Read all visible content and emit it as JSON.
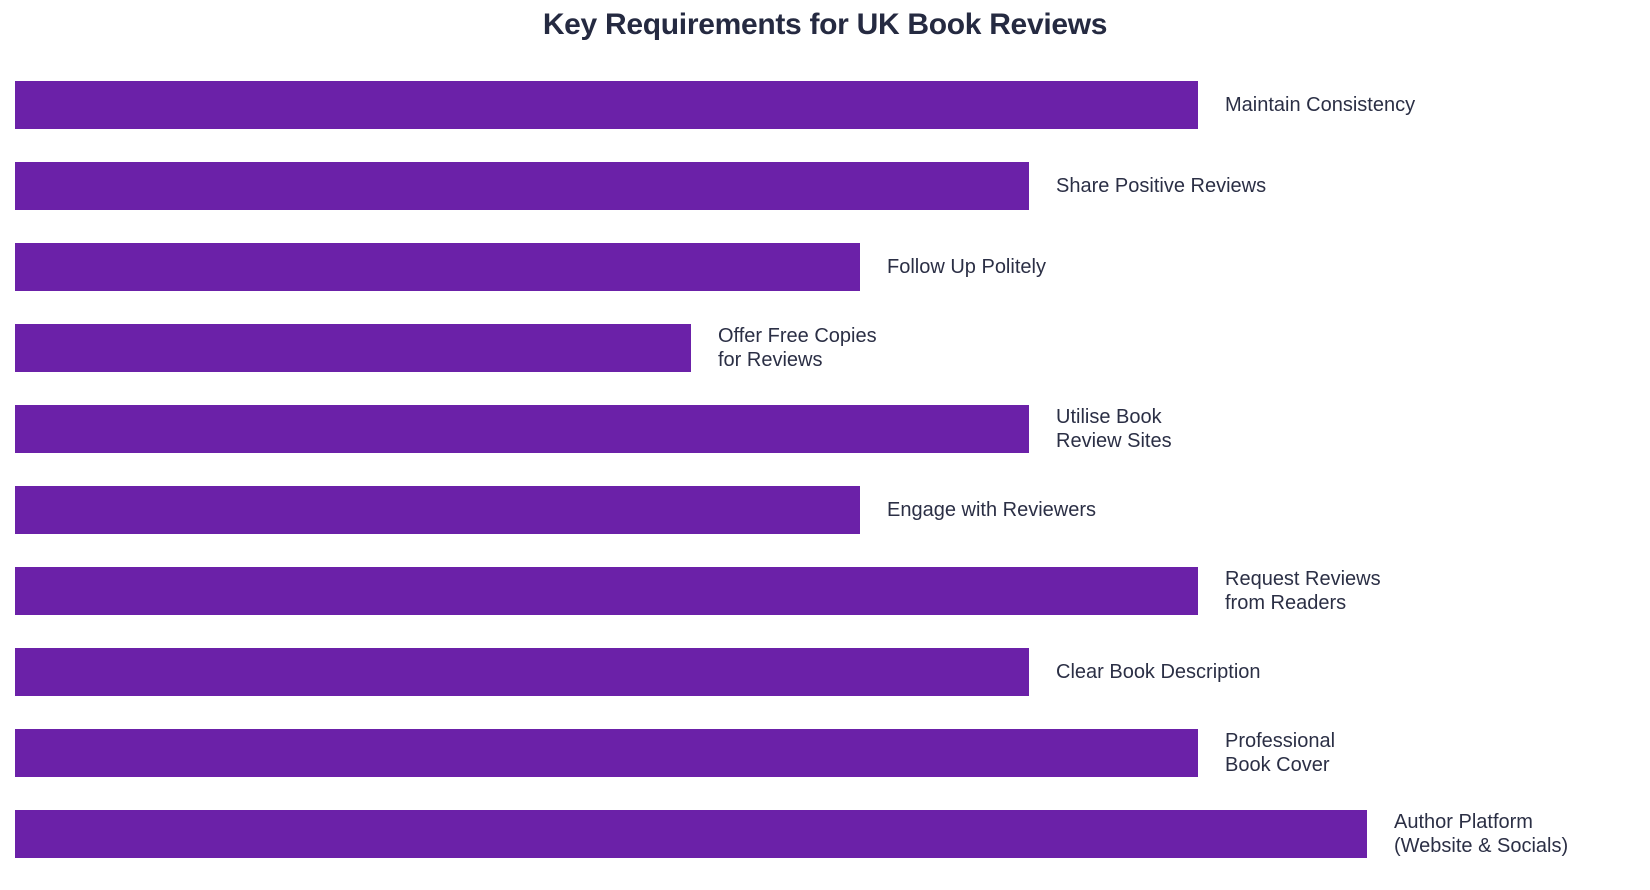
{
  "title": "Key Requirements for UK Book Reviews",
  "colors": {
    "background": "#ffffff",
    "bar": "#6b21a8",
    "title_text": "#252a41",
    "label_text": "#2b2f45"
  },
  "chart_data": {
    "type": "bar",
    "orientation": "horizontal",
    "title": "Key Requirements for UK Book Reviews",
    "categories": [
      "Maintain Consistency",
      "Share Positive Reviews",
      "Follow Up Politely",
      "Offer Free Copies\nfor Reviews",
      "Utilise Book\nReview Sites",
      "Engage with Reviewers",
      "Request Reviews\nfrom Readers",
      "Clear Book Description",
      "Professional\nBook Cover",
      "Author Platform\n(Website & Socials)"
    ],
    "values": [
      7,
      6,
      5,
      4,
      6,
      5,
      7,
      6,
      7,
      8
    ],
    "xlabel": "",
    "ylabel": "",
    "xlim": [
      0,
      8
    ],
    "grid": false,
    "legend": false,
    "axes_visible": false,
    "bar_color": "#6b21a8",
    "label_position": "right-of-bar"
  }
}
